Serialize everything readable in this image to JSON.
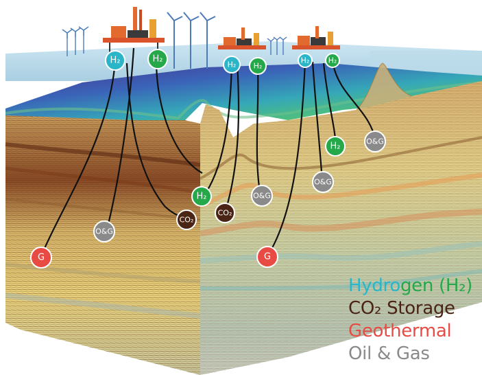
{
  "colors": {
    "hydrogen_cyan": "#2ab6c8",
    "hydrogen_green": "#25a84a",
    "co2_brown": "#4a2415",
    "geothermal_red": "#e84b43",
    "oil_gas_grey": "#8a8a8a"
  },
  "nodes": {
    "h2_label": "H₂",
    "co2_label": "CO₂",
    "og_label": "O&G",
    "g_label": "G"
  },
  "legend": {
    "hydrogen_part1": "Hydro",
    "hydrogen_part2": "gen (H₂)",
    "co2": "CO₂ Storage",
    "geothermal": "Geothermal",
    "oil_gas": "Oil & Gas"
  }
}
